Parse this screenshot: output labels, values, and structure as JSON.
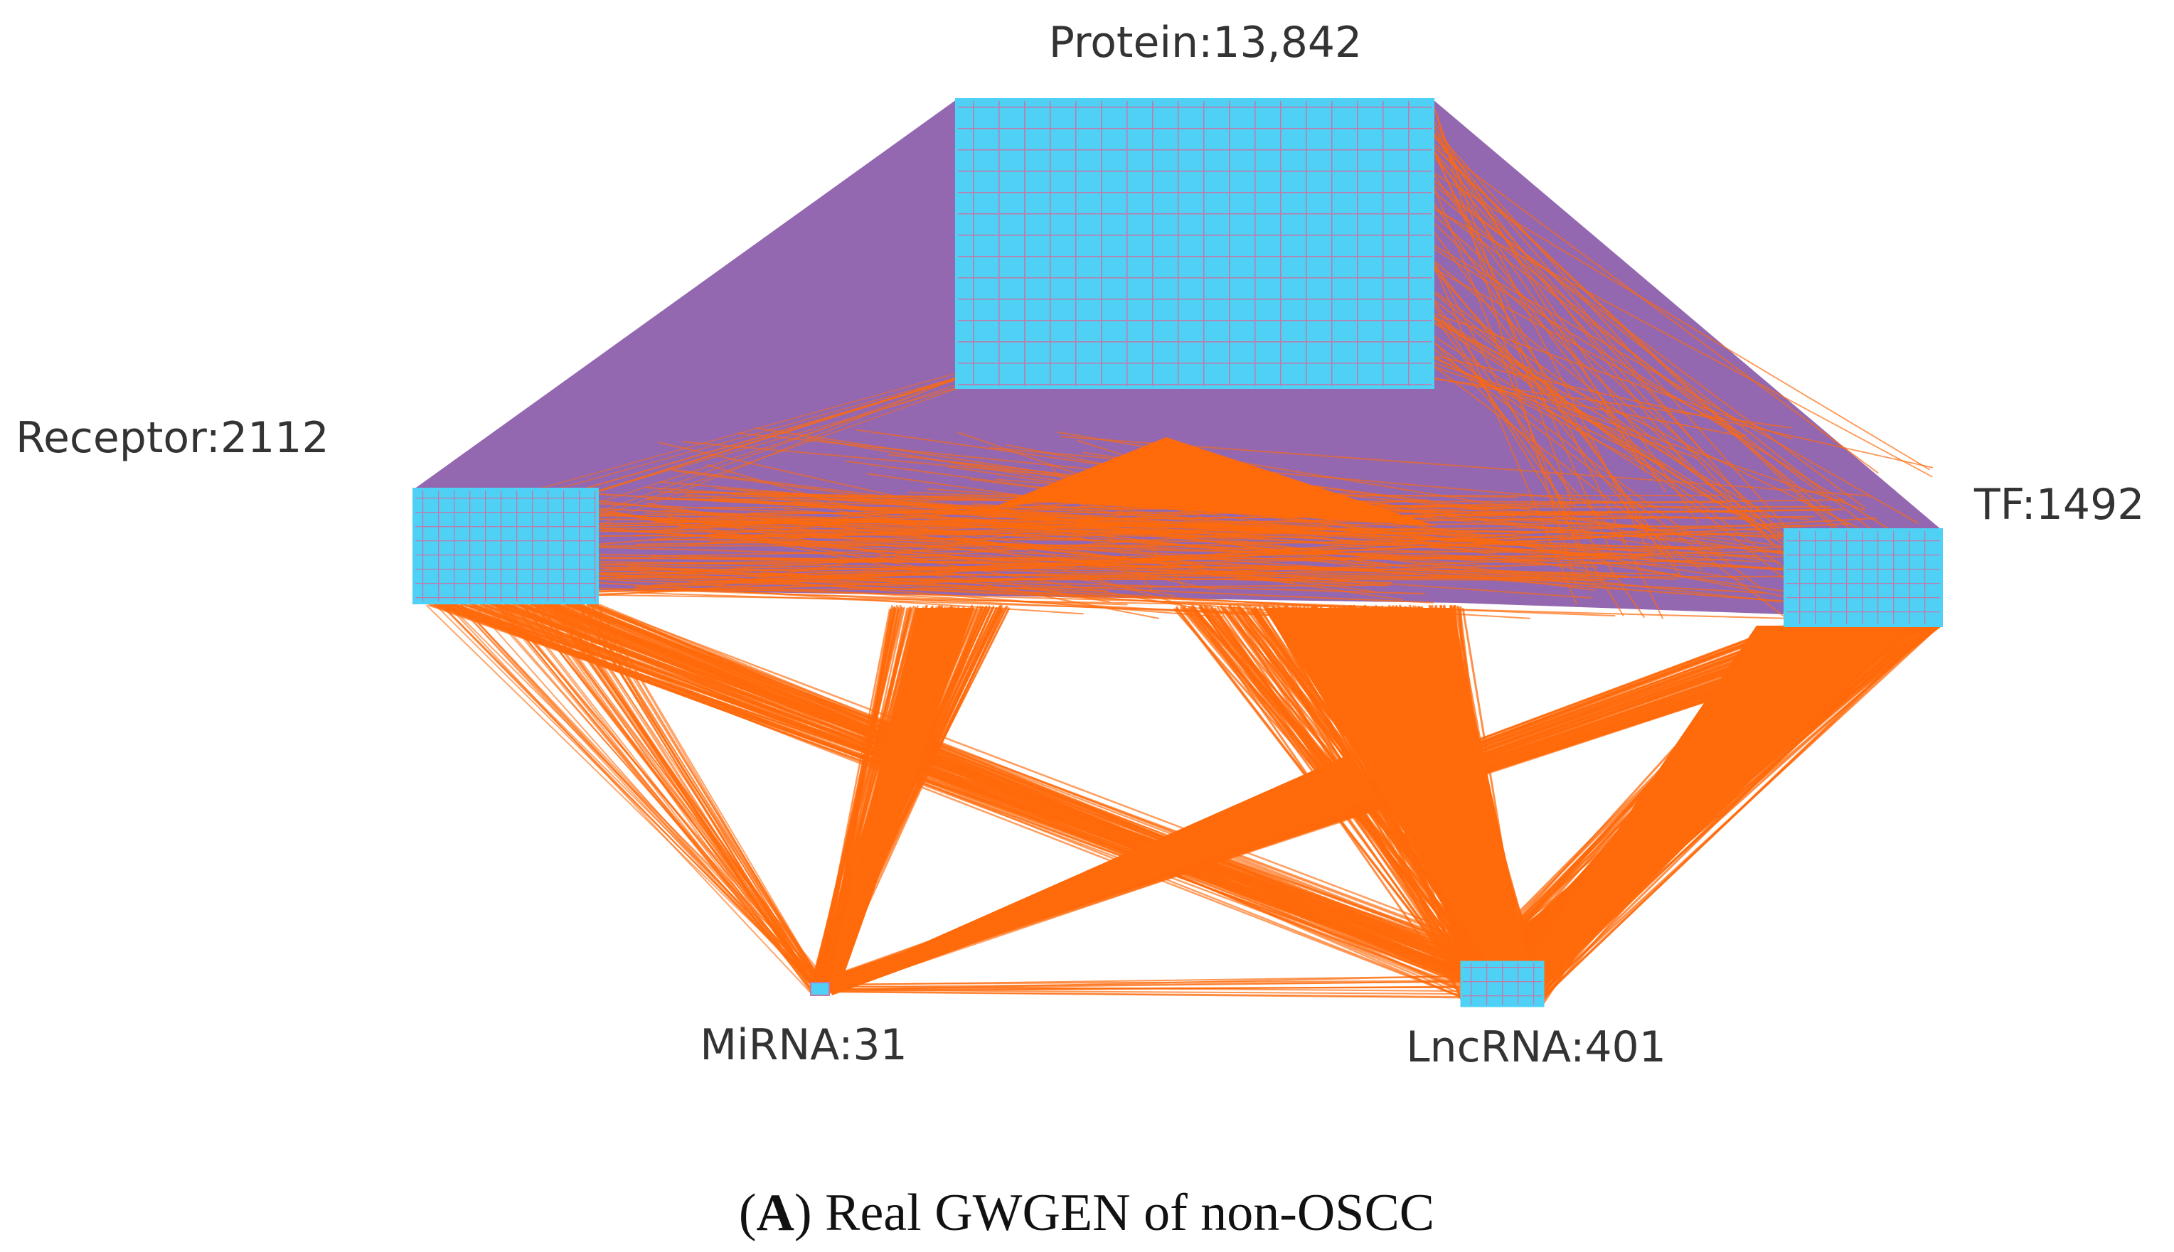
{
  "nodes": [
    {
      "id": "protein",
      "label": "Protein:13,842"
    },
    {
      "id": "receptor",
      "label": "Receptor:2112"
    },
    {
      "id": "tf",
      "label": "TF:1492"
    },
    {
      "id": "mirna",
      "label": "MiRNA:31"
    },
    {
      "id": "lncrna",
      "label": "LncRNA:401"
    }
  ],
  "caption": {
    "open": "(",
    "panel": "A",
    "close": ")",
    "text": " Real GWGEN of non-OSCC"
  },
  "colors": {
    "node_fill": "#4FD0F5",
    "node_grid": "#C07AA8",
    "ppi_edges": "#9468B0",
    "regulatory_edges": "#FF6A0A"
  }
}
